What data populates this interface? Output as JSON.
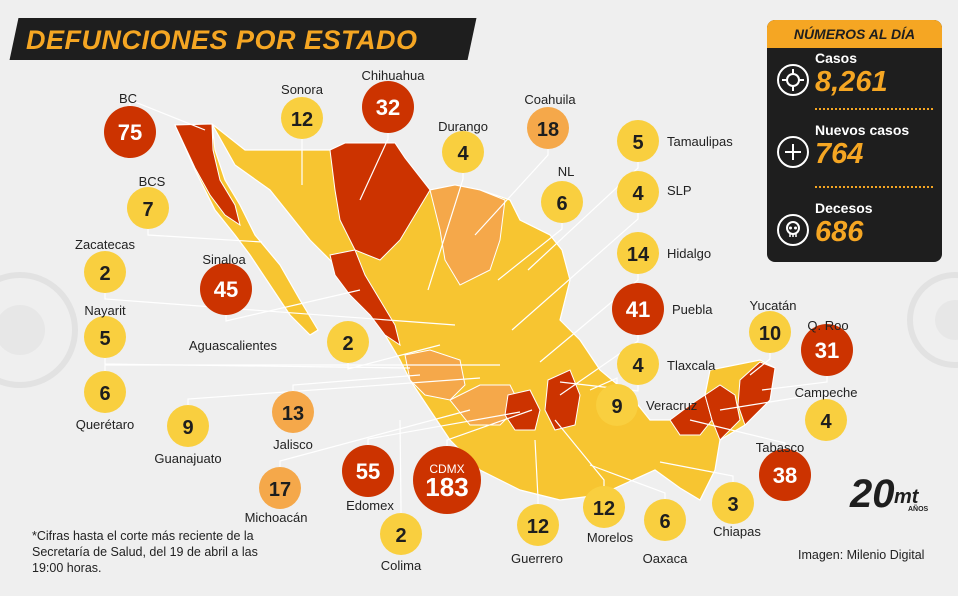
{
  "header": {
    "title": "DEFUNCIONES POR ESTADO"
  },
  "panel": {
    "title": "NÚMEROS AL DÍA",
    "stats": [
      {
        "label": "Casos",
        "value": "8,261"
      },
      {
        "label": "Nuevos casos",
        "value": "764"
      },
      {
        "label": "Decesos",
        "value": "686"
      }
    ]
  },
  "footnote": "*Cifras hasta el corte más reciente de la Secretaría de Salud, del 19 de abril a las 19:00 horas.",
  "credit": "Imagen: Milenio Digital",
  "logo": {
    "number": "20",
    "brand": "mt",
    "sub": "AÑOS"
  },
  "colors": {
    "high": "#cc3300",
    "medium": "#f5a84a",
    "low": "#f9cf3f",
    "map_fill": "#f7c531",
    "bubble_text_dark": "#1e1e1e",
    "bubble_text_light": "#ffffff",
    "panel_bg": "#1e1e1e",
    "accent": "#f5a623"
  },
  "chart_data": {
    "type": "map",
    "title": "DEFUNCIONES POR ESTADO",
    "unit": "defunciones",
    "states": [
      {
        "name": "BC",
        "value": 75,
        "level": "high"
      },
      {
        "name": "Sonora",
        "value": 12,
        "level": "low"
      },
      {
        "name": "Chihuahua",
        "value": 32,
        "level": "high"
      },
      {
        "name": "Coahuila",
        "value": 18,
        "level": "medium"
      },
      {
        "name": "Durango",
        "value": 4,
        "level": "low"
      },
      {
        "name": "Tamaulipas",
        "value": 5,
        "level": "low"
      },
      {
        "name": "BCS",
        "value": 7,
        "level": "low"
      },
      {
        "name": "NL",
        "value": 6,
        "level": "low"
      },
      {
        "name": "SLP",
        "value": 4,
        "level": "low"
      },
      {
        "name": "Zacatecas",
        "value": 2,
        "level": "low"
      },
      {
        "name": "Sinaloa",
        "value": 45,
        "level": "high"
      },
      {
        "name": "Hidalgo",
        "value": 14,
        "level": "low"
      },
      {
        "name": "Nayarit",
        "value": 5,
        "level": "low"
      },
      {
        "name": "Aguascalientes",
        "value": 2,
        "level": "low"
      },
      {
        "name": "Puebla",
        "value": 41,
        "level": "high"
      },
      {
        "name": "Yucatán",
        "value": 10,
        "level": "low"
      },
      {
        "name": "Q. Roo",
        "value": 31,
        "level": "high"
      },
      {
        "name": "Tlaxcala",
        "value": 4,
        "level": "low"
      },
      {
        "name": "Querétaro",
        "value": 6,
        "level": "low"
      },
      {
        "name": "Guanajuato",
        "value": 9,
        "level": "low"
      },
      {
        "name": "Jalisco",
        "value": 13,
        "level": "medium"
      },
      {
        "name": "Veracruz",
        "value": 9,
        "level": "low"
      },
      {
        "name": "Campeche",
        "value": 4,
        "level": "low"
      },
      {
        "name": "Tabasco",
        "value": 38,
        "level": "high"
      },
      {
        "name": "Michoacán",
        "value": 17,
        "level": "medium"
      },
      {
        "name": "Edomex",
        "value": 55,
        "level": "high"
      },
      {
        "name": "CDMX",
        "value": 183,
        "level": "high"
      },
      {
        "name": "Chiapas",
        "value": 3,
        "level": "low"
      },
      {
        "name": "Colima",
        "value": 2,
        "level": "low"
      },
      {
        "name": "Guerrero",
        "value": 12,
        "level": "low"
      },
      {
        "name": "Morelos",
        "value": 12,
        "level": "low"
      },
      {
        "name": "Oaxaca",
        "value": 6,
        "level": "low"
      }
    ]
  }
}
